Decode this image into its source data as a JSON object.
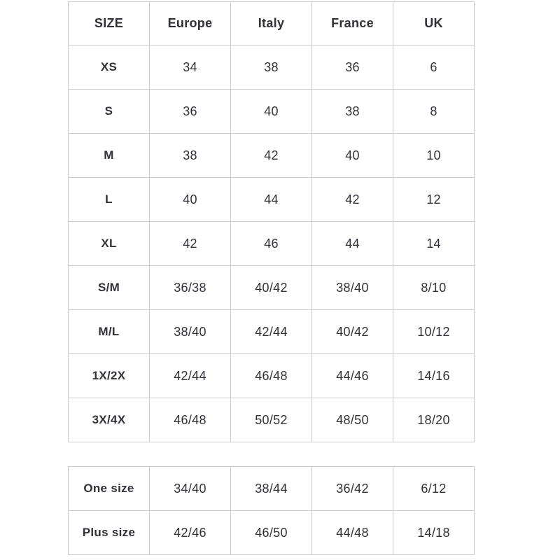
{
  "page": {
    "background_color": "#ffffff",
    "text_color": "#31313a",
    "border_color": "#cbcbcb"
  },
  "chart_data": [
    {
      "type": "table",
      "name": "standard-size-conversion",
      "columns": [
        "SIZE",
        "Europe",
        "Italy",
        "France",
        "UK"
      ],
      "rows": [
        [
          "XS",
          "34",
          "38",
          "36",
          "6"
        ],
        [
          "S",
          "36",
          "40",
          "38",
          "8"
        ],
        [
          "M",
          "38",
          "42",
          "40",
          "10"
        ],
        [
          "L",
          "40",
          "44",
          "42",
          "12"
        ],
        [
          "XL",
          "42",
          "46",
          "44",
          "14"
        ],
        [
          "S/M",
          "36/38",
          "40/42",
          "38/40",
          "8/10"
        ],
        [
          "M/L",
          "38/40",
          "42/44",
          "40/42",
          "10/12"
        ],
        [
          "1X/2X",
          "42/44",
          "46/48",
          "44/46",
          "14/16"
        ],
        [
          "3X/4X",
          "46/48",
          "50/52",
          "48/50",
          "18/20"
        ]
      ],
      "layout": {
        "header_row": true,
        "grid": true
      }
    },
    {
      "type": "table",
      "name": "special-size-conversion",
      "columns": [],
      "rows": [
        [
          "One size",
          "34/40",
          "38/44",
          "36/42",
          "6/12"
        ],
        [
          "Plus size",
          "42/46",
          "46/50",
          "44/48",
          "14/18"
        ]
      ],
      "layout": {
        "header_row": false,
        "grid": true
      }
    }
  ]
}
